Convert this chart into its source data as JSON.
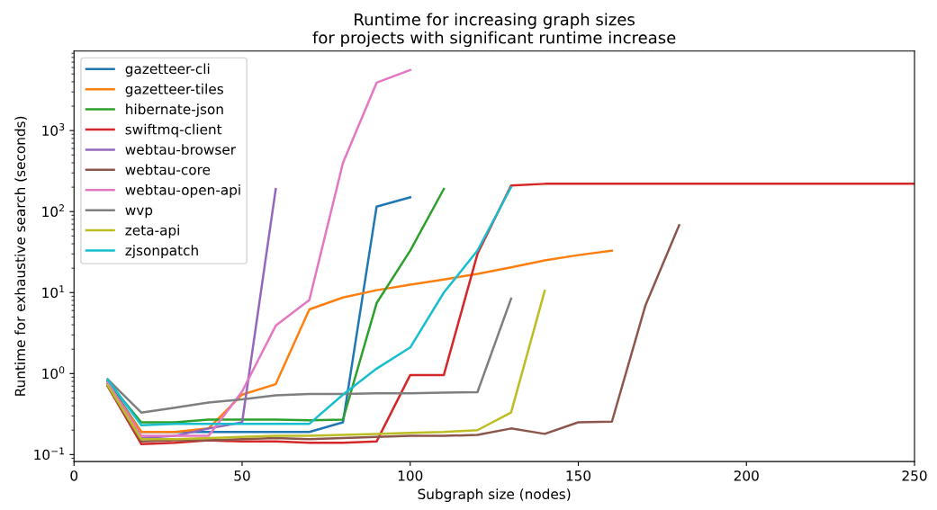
{
  "chart_data": {
    "type": "line",
    "title": "Runtime for increasing graph sizes\nfor projects with significant runtime increase",
    "xlabel": "Subgraph size (nodes)",
    "ylabel": "Runtime for exhaustive search (seconds)",
    "log": "y",
    "xlim": [
      0,
      250
    ],
    "xticks": [
      0,
      50,
      100,
      150,
      200,
      250
    ],
    "ylim": [
      0.082,
      9600
    ],
    "yticks": [
      {
        "value": 0.1,
        "label": "10$^{−1}$"
      },
      {
        "value": 1,
        "label": "10$^{0}$"
      },
      {
        "value": 10,
        "label": "10$^{1}$"
      },
      {
        "value": 100,
        "label": "10$^{2}$"
      },
      {
        "value": 1000,
        "label": "10$^{3}$"
      }
    ],
    "grid": false,
    "legend": "top left",
    "line_style": "solid",
    "marker": "none",
    "series": [
      {
        "name": "gazetteer-cli",
        "color": "#1f77b4",
        "x": [
          10,
          20,
          30,
          40,
          50,
          60,
          70,
          80,
          90,
          100
        ],
        "values": [
          0.8,
          0.19,
          0.19,
          0.19,
          0.19,
          0.19,
          0.19,
          0.25,
          115,
          150
        ]
      },
      {
        "name": "gazetteer-tiles",
        "color": "#ff7f0e",
        "x": [
          10,
          20,
          30,
          40,
          50,
          60,
          70,
          80,
          90,
          100,
          110,
          120,
          130,
          140,
          150,
          160
        ],
        "values": [
          0.75,
          0.19,
          0.19,
          0.21,
          0.55,
          0.74,
          6.2,
          8.7,
          10.7,
          12.5,
          14.5,
          17,
          20.5,
          25,
          29,
          33
        ]
      },
      {
        "name": "hibernate-json",
        "color": "#2ca02c",
        "x": [
          10,
          20,
          30,
          40,
          50,
          60,
          70,
          80,
          90,
          100,
          110
        ],
        "values": [
          0.8,
          0.25,
          0.25,
          0.27,
          0.27,
          0.27,
          0.265,
          0.27,
          7.4,
          33,
          190
        ]
      },
      {
        "name": "swiftmq-client",
        "color": "#d62728",
        "x": [
          10,
          20,
          30,
          40,
          50,
          60,
          70,
          80,
          90,
          100,
          110,
          120,
          130,
          140,
          150,
          160,
          170,
          180,
          190,
          200,
          210,
          220,
          230,
          240,
          250
        ],
        "values": [
          0.7,
          0.135,
          0.14,
          0.15,
          0.145,
          0.145,
          0.14,
          0.14,
          0.145,
          0.96,
          0.96,
          30,
          210,
          220,
          220,
          220,
          220,
          220,
          220,
          220,
          220,
          220,
          220,
          220,
          220
        ]
      },
      {
        "name": "webtau-browser",
        "color": "#9467bd",
        "x": [
          10,
          20,
          30,
          40,
          50,
          60
        ],
        "values": [
          0.75,
          0.16,
          0.17,
          0.21,
          0.25,
          190
        ]
      },
      {
        "name": "webtau-core",
        "color": "#8c564b",
        "x": [
          10,
          20,
          30,
          40,
          50,
          60,
          70,
          80,
          90,
          100,
          110,
          120,
          130,
          140,
          150,
          160,
          170,
          180
        ],
        "values": [
          0.7,
          0.145,
          0.15,
          0.15,
          0.155,
          0.16,
          0.155,
          0.16,
          0.165,
          0.17,
          0.17,
          0.175,
          0.21,
          0.18,
          0.25,
          0.255,
          7,
          68
        ]
      },
      {
        "name": "webtau-open-api",
        "color": "#e377c2",
        "x": [
          10,
          20,
          30,
          40,
          50,
          60,
          70,
          80,
          90,
          100
        ],
        "values": [
          0.78,
          0.17,
          0.17,
          0.17,
          0.6,
          3.9,
          8.1,
          400,
          3900,
          5600
        ]
      },
      {
        "name": "wvp",
        "color": "#7f7f7f",
        "x": [
          10,
          20,
          30,
          40,
          50,
          60,
          70,
          80,
          90,
          100,
          110,
          120,
          130
        ],
        "values": [
          0.85,
          0.33,
          0.38,
          0.44,
          0.48,
          0.54,
          0.56,
          0.56,
          0.57,
          0.57,
          0.58,
          0.59,
          8.4
        ]
      },
      {
        "name": "zeta-api",
        "color": "#bcbd22",
        "x": [
          10,
          20,
          30,
          40,
          50,
          60,
          70,
          80,
          90,
          100,
          110,
          120,
          130,
          140
        ],
        "values": [
          0.72,
          0.155,
          0.155,
          0.16,
          0.165,
          0.17,
          0.17,
          0.175,
          0.18,
          0.185,
          0.19,
          0.2,
          0.33,
          10.5
        ]
      },
      {
        "name": "zjsonpatch",
        "color": "#17becf",
        "x": [
          10,
          20,
          30,
          40,
          50,
          60,
          70,
          80,
          90,
          100,
          110,
          120,
          130
        ],
        "values": [
          0.85,
          0.23,
          0.24,
          0.24,
          0.24,
          0.24,
          0.24,
          0.55,
          1.15,
          2.1,
          10,
          33,
          200
        ]
      }
    ]
  }
}
